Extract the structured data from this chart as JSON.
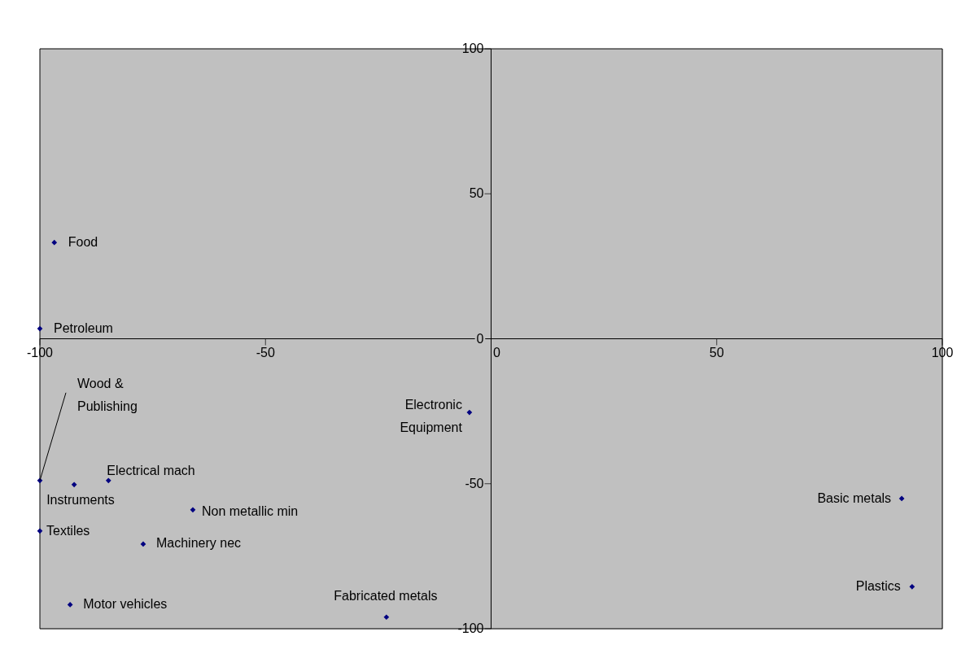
{
  "chart_data": {
    "type": "scatter",
    "xlim": [
      -100,
      100
    ],
    "ylim": [
      -100,
      100
    ],
    "xticks": [
      -100,
      -50,
      0,
      50,
      100
    ],
    "yticks": [
      -100,
      -50,
      0,
      50,
      100
    ],
    "marker": "diamond",
    "series": [
      {
        "color": "#000080",
        "x": [
          -96.8,
          -100,
          -100,
          -92.4,
          -84.8,
          -66.1,
          -100,
          -77.1,
          -93.3,
          -23.2,
          -4.8,
          91,
          93.3
        ],
        "values": [
          33.2,
          3.5,
          -48.9,
          -50.3,
          -48.9,
          -59,
          -66.3,
          -70.8,
          -91.7,
          -96,
          -25.4,
          -55.1,
          -85.5
        ]
      }
    ],
    "annotations": [
      {
        "text": "Food",
        "x": -96.8,
        "y": 33.2
      },
      {
        "text": "Petroleum",
        "x": -100,
        "y": 3.5
      },
      {
        "text": "Wood &\nPublishing",
        "x": -100,
        "y": -48.9
      },
      {
        "text": "Instruments",
        "x": -92.4,
        "y": -50.3
      },
      {
        "text": "Electrical mach",
        "x": -84.8,
        "y": -48.9
      },
      {
        "text": "Non metallic min",
        "x": -66.1,
        "y": -59
      },
      {
        "text": "Textiles",
        "x": -100,
        "y": -66.3
      },
      {
        "text": "Machinery nec",
        "x": -77.1,
        "y": -70.8
      },
      {
        "text": "Motor vehicles",
        "x": -93.3,
        "y": -91.7
      },
      {
        "text": "Fabricated metals",
        "x": -23.2,
        "y": -96
      },
      {
        "text": "Electronic\nEquipment",
        "x": -4.8,
        "y": -25.4
      },
      {
        "text": "Basic metals",
        "x": 91,
        "y": -55.1
      },
      {
        "text": "Plastics",
        "x": 93.3,
        "y": -85.5
      }
    ]
  }
}
